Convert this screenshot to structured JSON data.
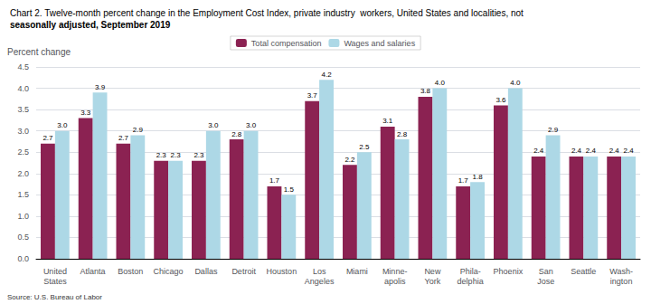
{
  "chart_data": {
    "type": "bar",
    "title": "Chart 2. Twelve-month percent change in the Employment Cost Index, private industry  workers, United States and localities, not",
    "subtitle": "seasonally adjusted, September 2019",
    "ylabel": "Percent change",
    "annotations": [
      "Source: U.S. Bureau of Labor"
    ],
    "categories": [
      "United\nStates",
      "Atlanta",
      "Boston",
      "Chicago",
      "Dallas",
      "Detroit",
      "Houston",
      "Los\nAngeles",
      "Miami",
      "Minne-\napolis",
      "New\nYork",
      "Phila-\ndelphia",
      "Phoenix",
      "San\nJose",
      "Seattle",
      "Wash-\nington"
    ],
    "series": [
      {
        "name": "Total compensation",
        "color": "#8B2252",
        "values": [
          2.7,
          3.3,
          2.7,
          2.3,
          2.3,
          2.8,
          1.7,
          3.7,
          2.2,
          3.1,
          3.8,
          1.7,
          3.6,
          2.4,
          2.4,
          2.4
        ],
        "value_labels": [
          "2.7",
          "3.3",
          "2.7",
          "2.3",
          "2.3",
          "2.8",
          "1.7",
          "3.7",
          "2.2",
          "3.1",
          "3.8",
          "1.7",
          "3.6",
          "2.4",
          "2.4",
          "2.4"
        ]
      },
      {
        "name": "Wages and salaries",
        "color": "#ADD8E6",
        "values": [
          3.0,
          3.9,
          2.9,
          2.3,
          3.0,
          3.0,
          1.5,
          4.2,
          2.5,
          2.8,
          4.0,
          1.8,
          4.0,
          2.9,
          2.4,
          2.4
        ],
        "value_labels": [
          "3.0",
          "3.9",
          "2.9",
          "2.3",
          "3.0",
          "3.0",
          "1.5",
          "4.2",
          "2.5",
          "2.8",
          "4.0",
          "1.8",
          "4.0",
          "2.9",
          "2.4",
          "2.4"
        ]
      }
    ],
    "ylim": [
      0,
      4.5
    ],
    "yticks": [
      {
        "value": 0,
        "label": "0.0"
      },
      0.5,
      {
        "value": 1,
        "label": "1.0"
      },
      1.5,
      {
        "value": 2,
        "label": "2.0"
      },
      2.5,
      {
        "value": 3,
        "label": "3.0"
      },
      3.5,
      {
        "value": 4,
        "label": "4.0"
      },
      4.5
    ],
    "grid": true,
    "legend": "upper center",
    "data_labels": true
  }
}
